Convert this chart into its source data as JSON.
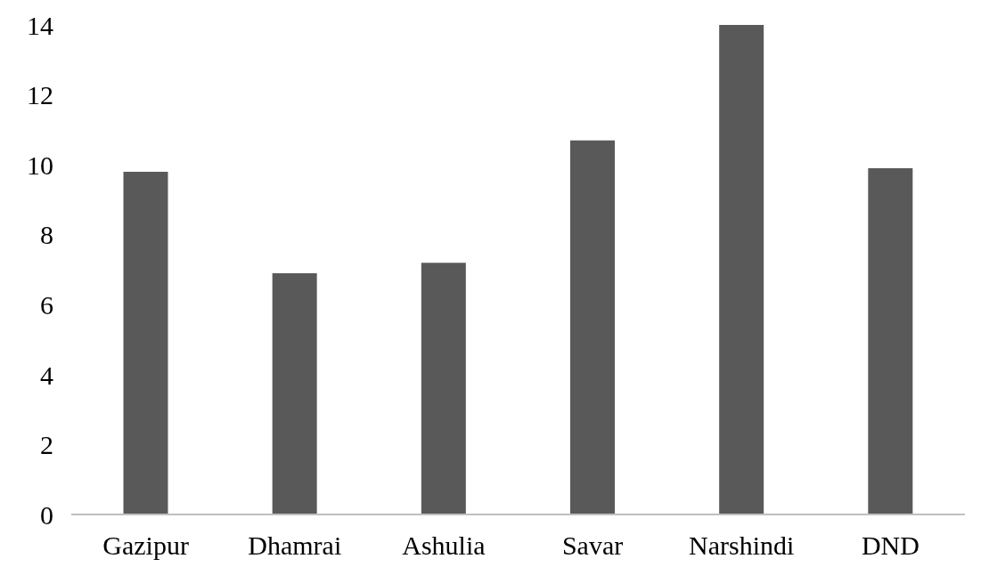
{
  "chart_data": {
    "type": "bar",
    "categories": [
      "Gazipur",
      "Dhamrai",
      "Ashulia",
      "Savar",
      "Narshindi",
      "DND"
    ],
    "values": [
      9.8,
      6.9,
      7.2,
      10.7,
      14.0,
      9.9
    ],
    "color": "#595959",
    "ylim": [
      0,
      14
    ],
    "yticks": [
      0,
      2,
      4,
      6,
      8,
      10,
      12,
      14
    ],
    "grid": false,
    "legend": false
  }
}
